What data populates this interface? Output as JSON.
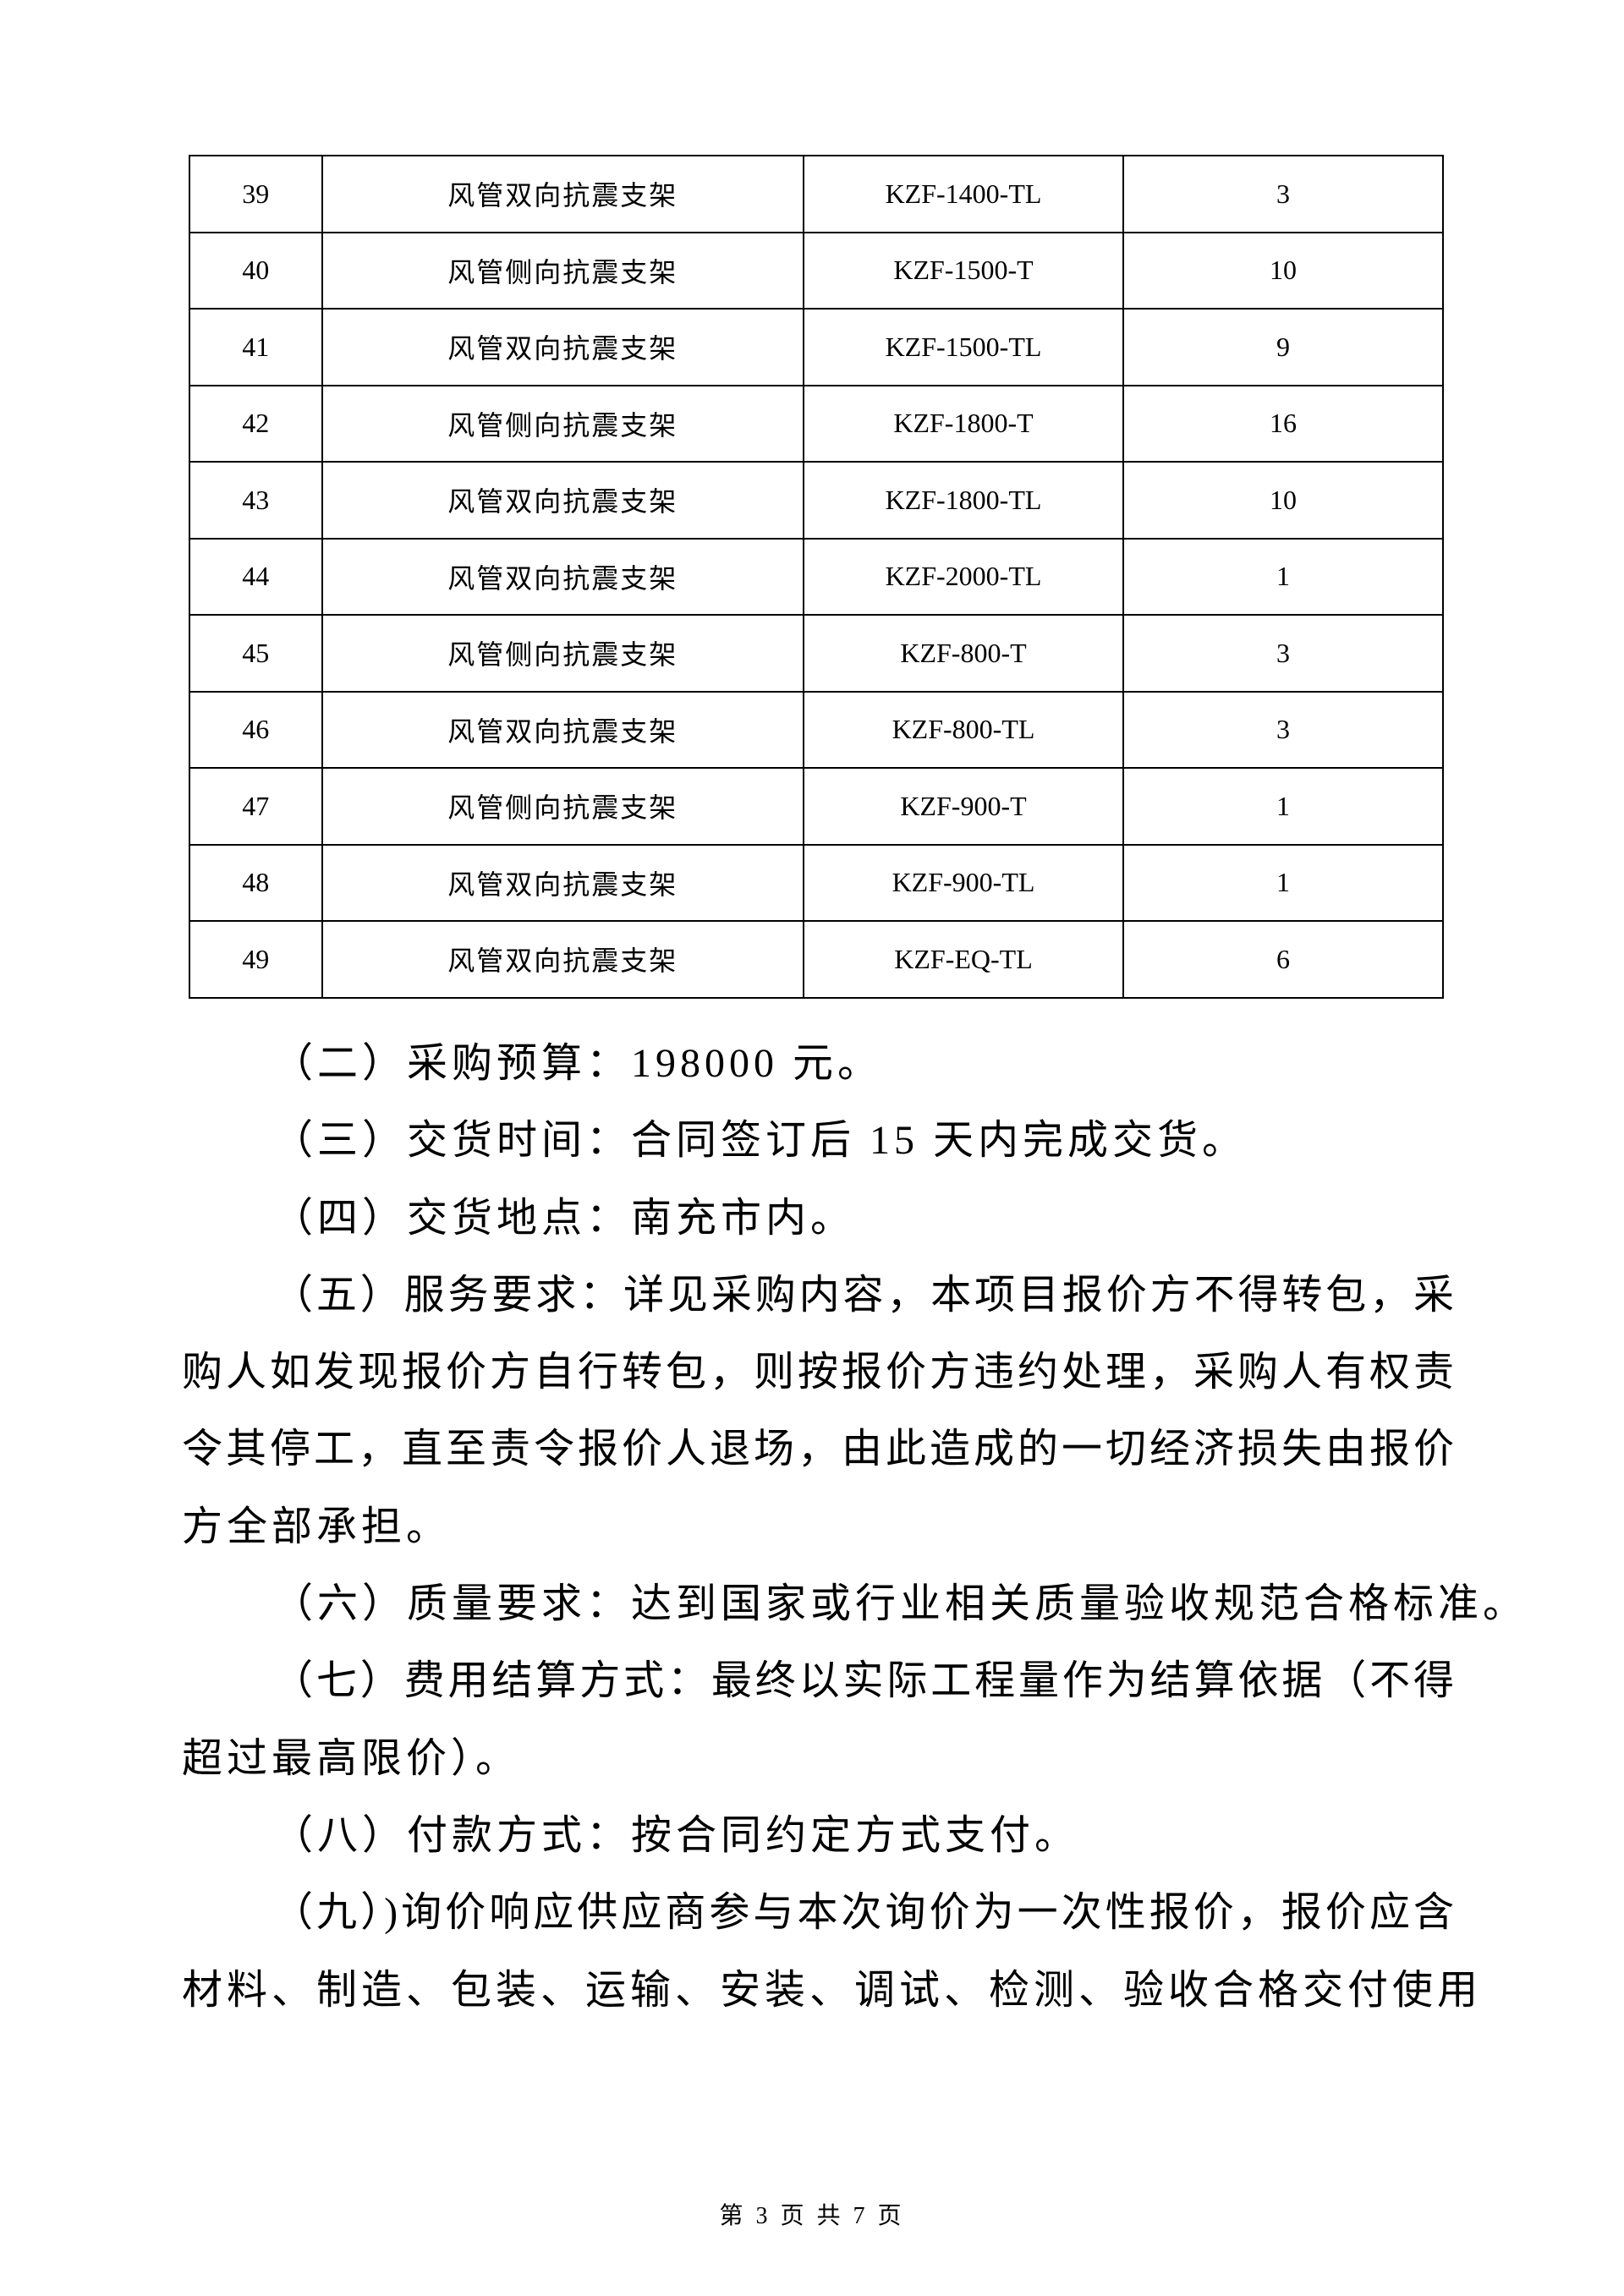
{
  "table": {
    "rows": [
      [
        "39",
        "风管双向抗震支架",
        "KZF-1400-TL",
        "3"
      ],
      [
        "40",
        "风管侧向抗震支架",
        "KZF-1500-T",
        "10"
      ],
      [
        "41",
        "风管双向抗震支架",
        "KZF-1500-TL",
        "9"
      ],
      [
        "42",
        "风管侧向抗震支架",
        "KZF-1800-T",
        "16"
      ],
      [
        "43",
        "风管双向抗震支架",
        "KZF-1800-TL",
        "10"
      ],
      [
        "44",
        "风管双向抗震支架",
        "KZF-2000-TL",
        "1"
      ],
      [
        "45",
        "风管侧向抗震支架",
        "KZF-800-T",
        "3"
      ],
      [
        "46",
        "风管双向抗震支架",
        "KZF-800-TL",
        "3"
      ],
      [
        "47",
        "风管侧向抗震支架",
        "KZF-900-T",
        "1"
      ],
      [
        "48",
        "风管双向抗震支架",
        "KZF-900-TL",
        "1"
      ],
      [
        "49",
        "风管双向抗震支架",
        "KZF-EQ-TL",
        "6"
      ]
    ]
  },
  "paragraphs": [
    {
      "lines": [
        "（二）采购预算：198000 元。"
      ]
    },
    {
      "lines": [
        "（三）交货时间：合同签订后 15 天内完成交货。"
      ]
    },
    {
      "lines": [
        "（四）交货地点：南充市内。"
      ]
    },
    {
      "lines": [
        "（五）服务要求：详见采购内容，本项目报价方不得转包，采",
        "购人如发现报价方自行转包，则按报价方违约处理，采购人有权责",
        "令其停工，直至责令报价人退场，由此造成的一切经济损失由报价",
        "方全部承担。"
      ]
    },
    {
      "lines": [
        "（六）质量要求：达到国家或行业相关质量验收规范合格标准。"
      ]
    },
    {
      "lines": [
        "（七）费用结算方式：最终以实际工程量作为结算依据（不得",
        "超过最高限价）。"
      ]
    },
    {
      "lines": [
        "（八）付款方式：按合同约定方式支付。"
      ]
    },
    {
      "lines": [
        "（九）)询价响应供应商参与本次询价为一次性报价，报价应含",
        "材料、制造、包装、运输、安装、调试、检测、验收合格交付使用"
      ]
    }
  ],
  "footer": "第 3 页 共 7 页"
}
